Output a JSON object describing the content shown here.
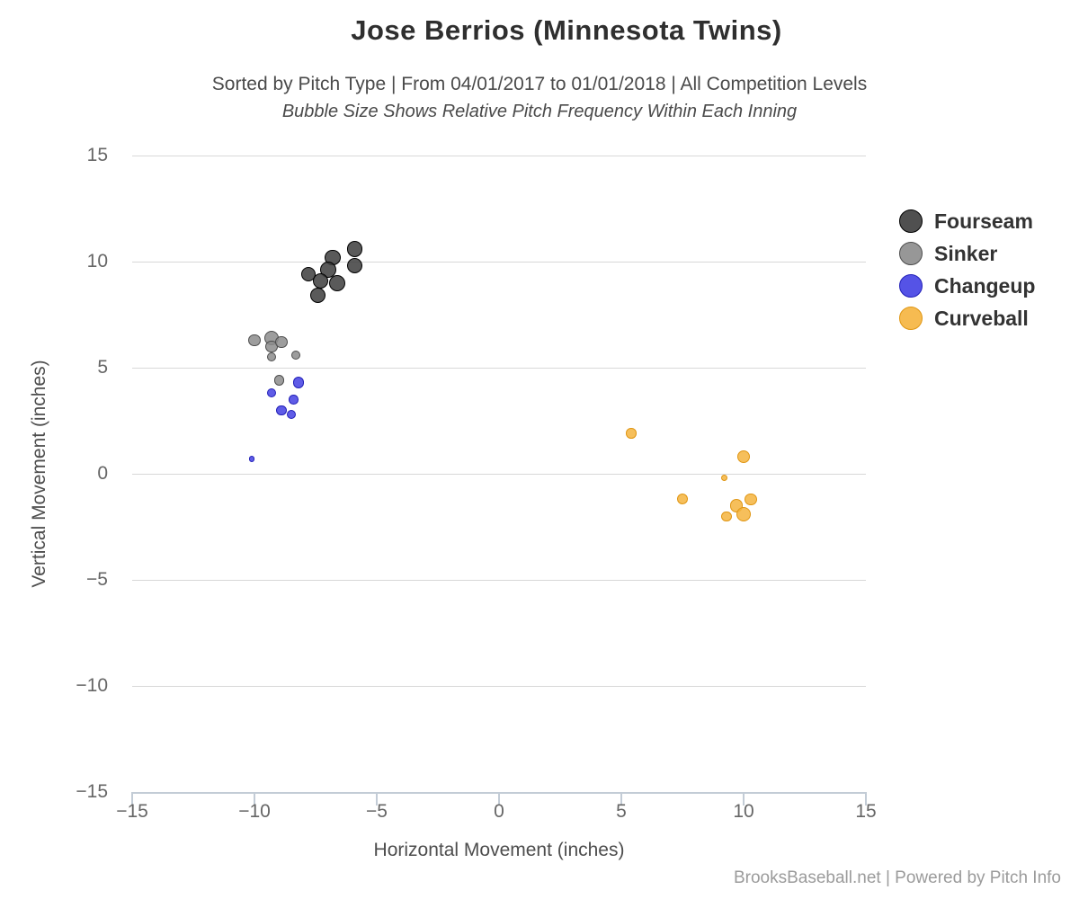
{
  "footer": "BrooksBaseball.net | Powered by Pitch Info",
  "chart_data": {
    "type": "scatter",
    "variant": "bubble",
    "title": "Jose Berrios (Minnesota Twins)",
    "subtitle": "Sorted by Pitch Type | From 04/01/2017 to 01/01/2018 | All Competition Levels",
    "subtitle_note": "Bubble Size Shows Relative Pitch Frequency Within Each Inning",
    "xlabel": "Horizontal Movement (inches)",
    "ylabel": "Vertical Movement (inches)",
    "xlim": [
      -15,
      15
    ],
    "ylim": [
      -15,
      15
    ],
    "xticks": [
      -15,
      -10,
      -5,
      0,
      5,
      10,
      15
    ],
    "yticks": [
      15,
      10,
      5,
      0,
      -5,
      -10,
      -15
    ],
    "grid": "horizontal-only",
    "legend_position": "right",
    "bubble_size_meaning": "relative pitch frequency within each inning (r = bubble radius in px)",
    "series": [
      {
        "name": "Fourseam",
        "fill": "#3d3d3d",
        "stroke": "#000000",
        "points": [
          {
            "x": -5.9,
            "y": 10.6,
            "r": 8.7
          },
          {
            "x": -5.9,
            "y": 9.8,
            "r": 8.7
          },
          {
            "x": -6.8,
            "y": 10.2,
            "r": 8.7
          },
          {
            "x": -7.0,
            "y": 9.6,
            "r": 9.0
          },
          {
            "x": -7.8,
            "y": 9.4,
            "r": 8.3
          },
          {
            "x": -7.3,
            "y": 9.1,
            "r": 8.7
          },
          {
            "x": -6.6,
            "y": 9.0,
            "r": 9.0
          },
          {
            "x": -7.4,
            "y": 8.4,
            "r": 8.7
          }
        ]
      },
      {
        "name": "Sinker",
        "fill": "#8c8c8c",
        "stroke": "#4d4d4d",
        "points": [
          {
            "x": -10.0,
            "y": 6.3,
            "r": 6.7
          },
          {
            "x": -9.3,
            "y": 6.4,
            "r": 8.3
          },
          {
            "x": -9.3,
            "y": 6.0,
            "r": 6.7
          },
          {
            "x": -8.9,
            "y": 6.2,
            "r": 6.7
          },
          {
            "x": -9.3,
            "y": 5.5,
            "r": 5.0
          },
          {
            "x": -8.3,
            "y": 5.6,
            "r": 5.0
          },
          {
            "x": -9.0,
            "y": 4.4,
            "r": 5.7
          }
        ]
      },
      {
        "name": "Changeup",
        "fill": "#4340e3",
        "stroke": "#2220b8",
        "points": [
          {
            "x": -8.2,
            "y": 4.3,
            "r": 6.3
          },
          {
            "x": -9.3,
            "y": 3.8,
            "r": 5.0
          },
          {
            "x": -8.4,
            "y": 3.5,
            "r": 5.3
          },
          {
            "x": -8.9,
            "y": 3.0,
            "r": 5.7
          },
          {
            "x": -8.5,
            "y": 2.8,
            "r": 5.3
          },
          {
            "x": -10.1,
            "y": 0.7,
            "r": 3.2
          }
        ]
      },
      {
        "name": "Curveball",
        "fill": "#f5b43e",
        "stroke": "#e09613",
        "points": [
          {
            "x": 5.4,
            "y": 1.9,
            "r": 5.7
          },
          {
            "x": 10.0,
            "y": 0.8,
            "r": 7.3
          },
          {
            "x": 9.2,
            "y": -0.2,
            "r": 3.7
          },
          {
            "x": 7.5,
            "y": -1.2,
            "r": 6.0
          },
          {
            "x": 10.3,
            "y": -1.2,
            "r": 6.7
          },
          {
            "x": 9.7,
            "y": -1.5,
            "r": 7.3
          },
          {
            "x": 9.3,
            "y": -2.0,
            "r": 5.7
          },
          {
            "x": 10.0,
            "y": -1.9,
            "r": 8.3
          }
        ]
      }
    ]
  }
}
